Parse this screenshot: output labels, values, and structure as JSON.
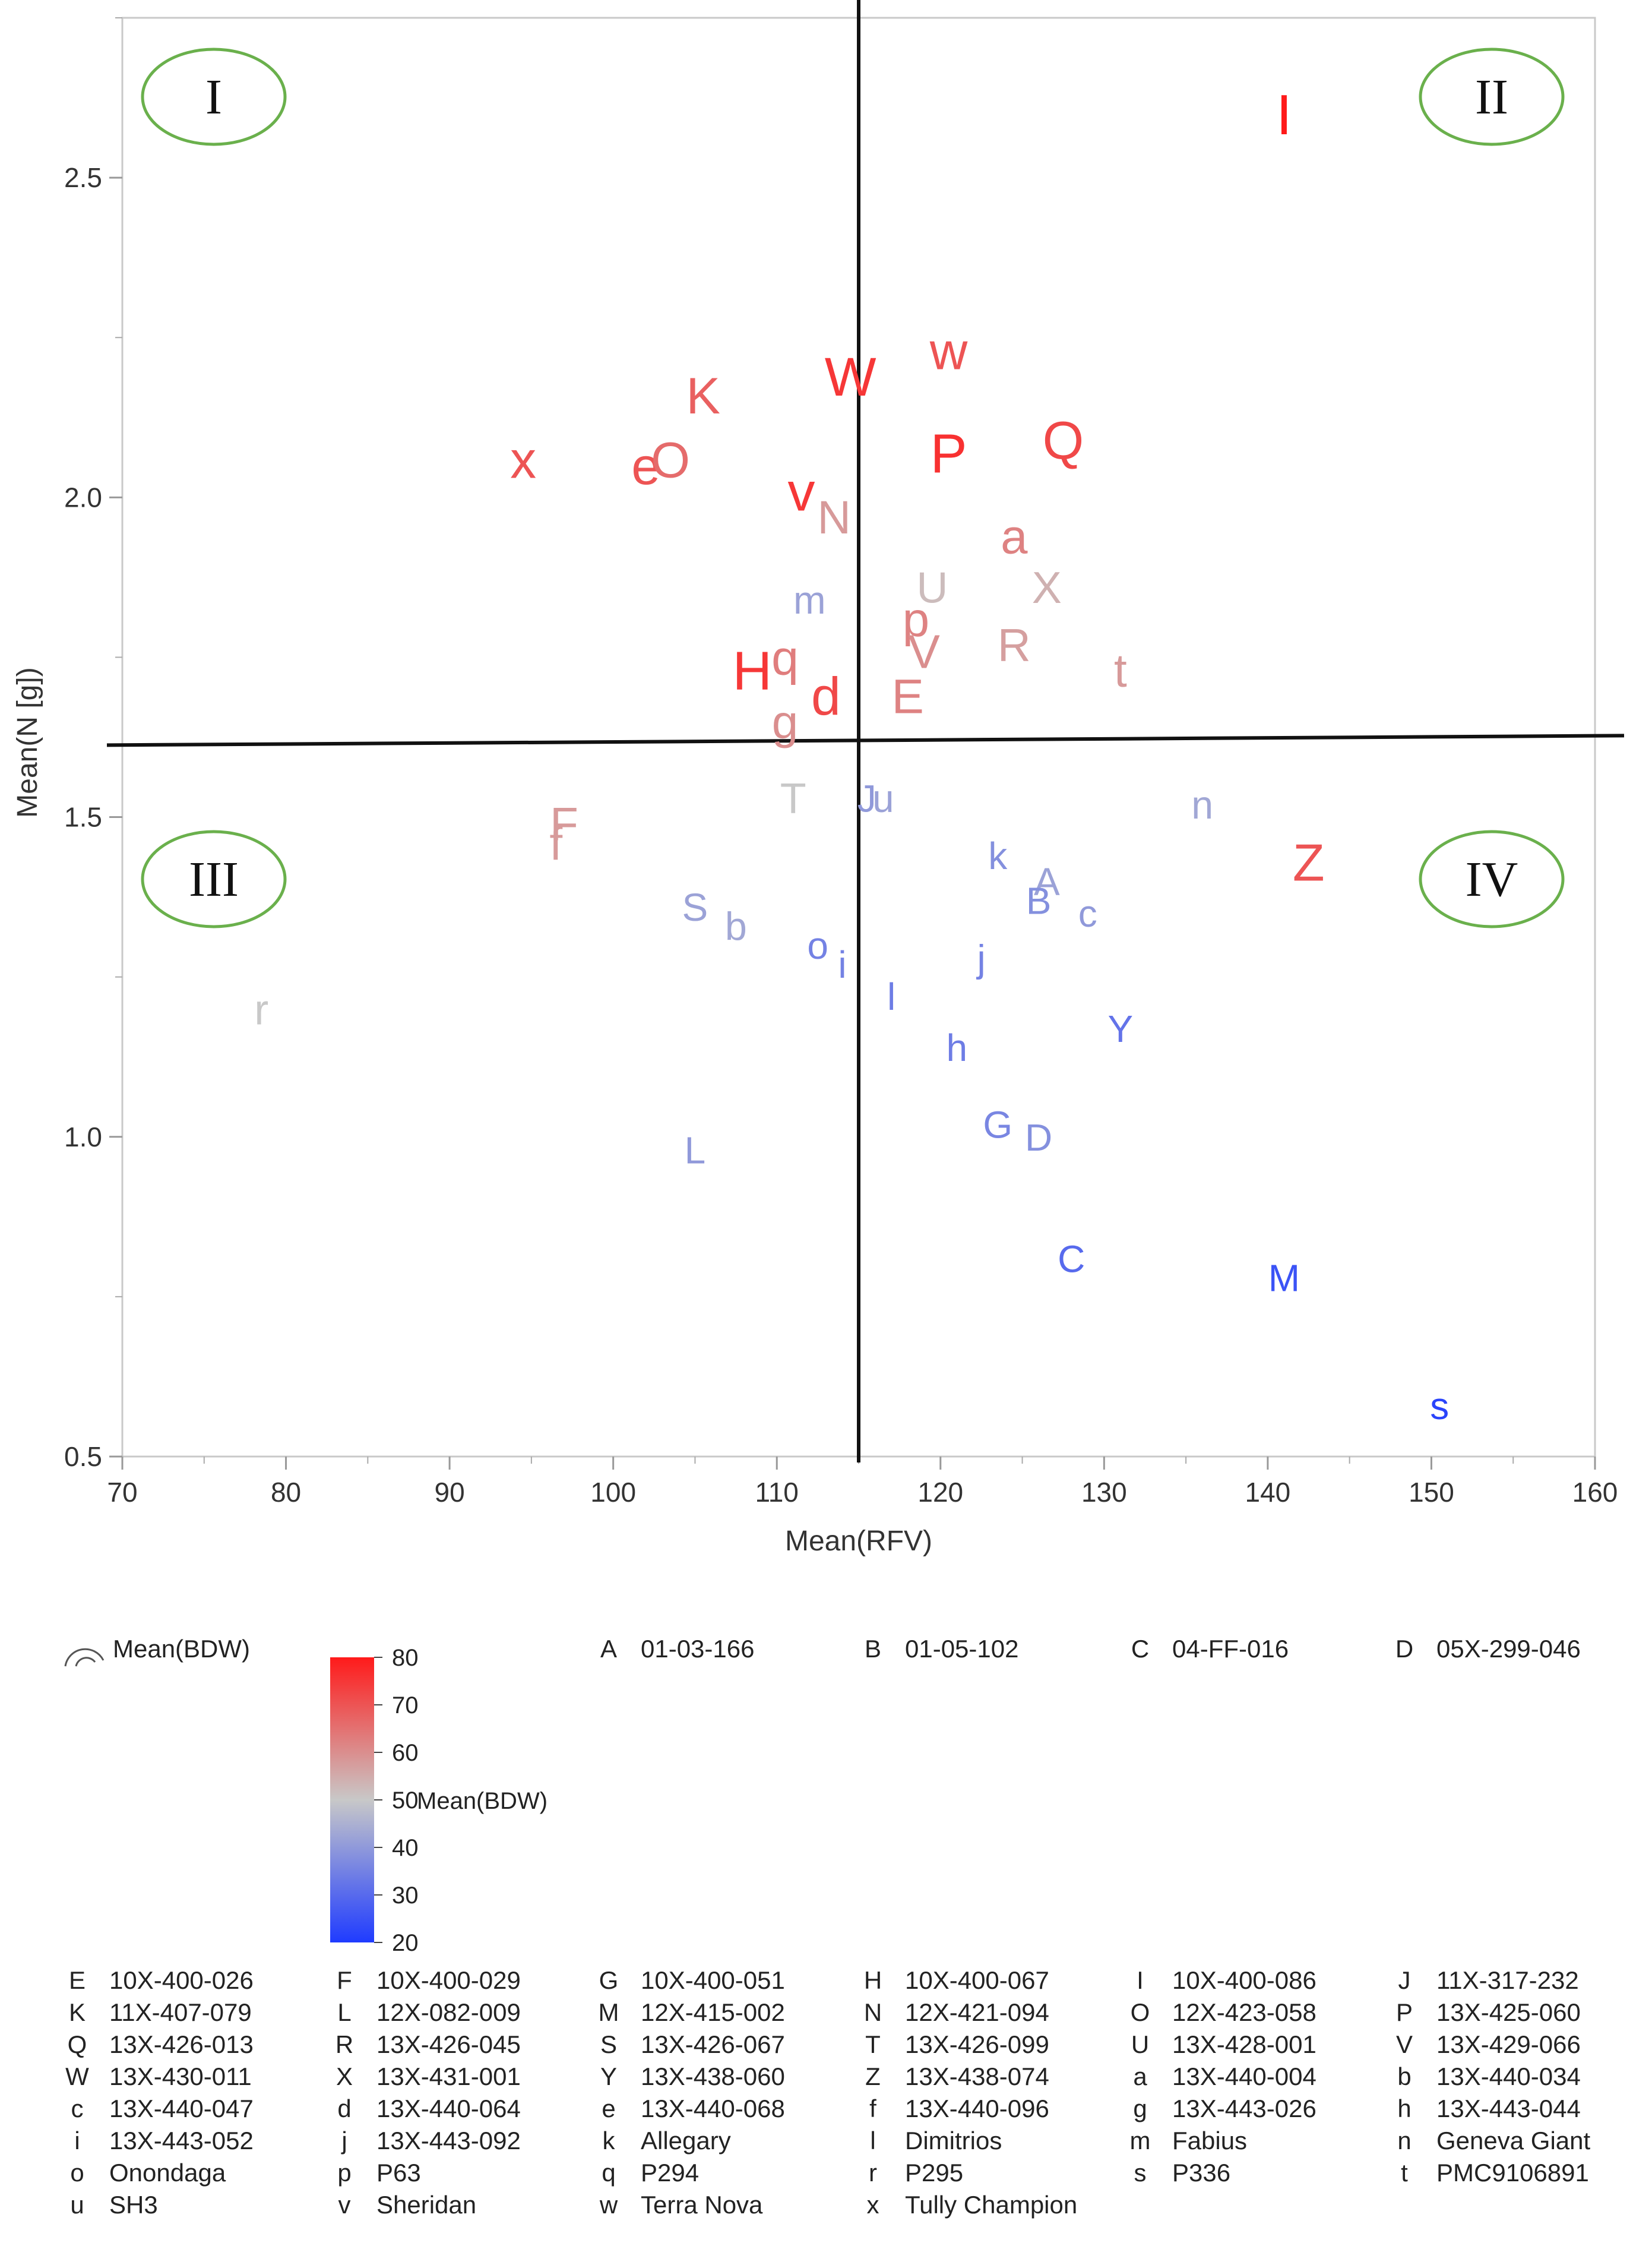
{
  "chart_data": {
    "type": "scatter",
    "title": "",
    "xlabel": "Mean(RFV)",
    "ylabel": "Mean(N [g])",
    "xlim": [
      70,
      160
    ],
    "ylim": [
      0.5,
      2.75
    ],
    "x_ticks": [
      "70",
      "80",
      "90",
      "100",
      "110",
      "120",
      "130",
      "140",
      "150",
      "160"
    ],
    "y_ticks": [
      "0.5",
      "1.0",
      "1.5",
      "2.0",
      "2.5"
    ],
    "color_variable": "Mean(BDW)",
    "colorbar_range": [
      20,
      80
    ],
    "colorbar_ticks": [
      "20",
      "30",
      "40",
      "50",
      "60",
      "70",
      "80"
    ],
    "colorbar_label": "Mean(BDW)",
    "quadrant_divider": {
      "x": 115,
      "y": 1.62
    },
    "quadrants": [
      "I",
      "II",
      "III",
      "IV"
    ],
    "legend_title": "Mean(BDW)",
    "points": [
      {
        "label": "I",
        "x": 141.0,
        "y": 2.6,
        "bdw": 80
      },
      {
        "label": "w",
        "x": 120.5,
        "y": 2.23,
        "bdw": 70
      },
      {
        "label": "W",
        "x": 114.5,
        "y": 2.19,
        "bdw": 75
      },
      {
        "label": "K",
        "x": 105.5,
        "y": 2.16,
        "bdw": 68
      },
      {
        "label": "Q",
        "x": 127.5,
        "y": 2.09,
        "bdw": 72
      },
      {
        "label": "P",
        "x": 120.5,
        "y": 2.07,
        "bdw": 76
      },
      {
        "label": "x",
        "x": 94.5,
        "y": 2.06,
        "bdw": 70
      },
      {
        "label": "e",
        "x": 102.0,
        "y": 2.05,
        "bdw": 70
      },
      {
        "label": "O",
        "x": 103.5,
        "y": 2.06,
        "bdw": 66
      },
      {
        "label": "v",
        "x": 111.5,
        "y": 2.01,
        "bdw": 75
      },
      {
        "label": "N",
        "x": 113.5,
        "y": 1.97,
        "bdw": 58
      },
      {
        "label": "a",
        "x": 124.5,
        "y": 1.94,
        "bdw": 62
      },
      {
        "label": "U",
        "x": 119.5,
        "y": 1.86,
        "bdw": 52
      },
      {
        "label": "X",
        "x": 126.5,
        "y": 1.86,
        "bdw": 54
      },
      {
        "label": "m",
        "x": 112.0,
        "y": 1.84,
        "bdw": 42
      },
      {
        "label": "p",
        "x": 118.5,
        "y": 1.81,
        "bdw": 62
      },
      {
        "label": "V",
        "x": 119.0,
        "y": 1.76,
        "bdw": 60
      },
      {
        "label": "R",
        "x": 124.5,
        "y": 1.77,
        "bdw": 57
      },
      {
        "label": "t",
        "x": 131.0,
        "y": 1.73,
        "bdw": 58
      },
      {
        "label": "H",
        "x": 108.5,
        "y": 1.73,
        "bdw": 75
      },
      {
        "label": "q",
        "x": 110.5,
        "y": 1.75,
        "bdw": 63
      },
      {
        "label": "d",
        "x": 113.0,
        "y": 1.69,
        "bdw": 72
      },
      {
        "label": "E",
        "x": 118.0,
        "y": 1.69,
        "bdw": 62
      },
      {
        "label": "g",
        "x": 110.5,
        "y": 1.65,
        "bdw": 60
      },
      {
        "label": "T",
        "x": 111.0,
        "y": 1.53,
        "bdw": 50
      },
      {
        "label": "J",
        "x": 115.5,
        "y": 1.53,
        "bdw": 40
      },
      {
        "label": "u",
        "x": 116.5,
        "y": 1.53,
        "bdw": 42
      },
      {
        "label": "n",
        "x": 136.0,
        "y": 1.52,
        "bdw": 43
      },
      {
        "label": "F",
        "x": 97.0,
        "y": 1.49,
        "bdw": 58
      },
      {
        "label": "f",
        "x": 96.5,
        "y": 1.46,
        "bdw": 58
      },
      {
        "label": "Z",
        "x": 142.5,
        "y": 1.43,
        "bdw": 70
      },
      {
        "label": "k",
        "x": 123.5,
        "y": 1.44,
        "bdw": 38
      },
      {
        "label": "A",
        "x": 126.5,
        "y": 1.4,
        "bdw": 42
      },
      {
        "label": "B",
        "x": 126.0,
        "y": 1.37,
        "bdw": 38
      },
      {
        "label": "c",
        "x": 129.0,
        "y": 1.35,
        "bdw": 40
      },
      {
        "label": "S",
        "x": 105.0,
        "y": 1.36,
        "bdw": 42
      },
      {
        "label": "b",
        "x": 107.5,
        "y": 1.33,
        "bdw": 43
      },
      {
        "label": "o",
        "x": 112.5,
        "y": 1.3,
        "bdw": 35
      },
      {
        "label": "i",
        "x": 114.0,
        "y": 1.27,
        "bdw": 35
      },
      {
        "label": "j",
        "x": 122.5,
        "y": 1.28,
        "bdw": 35
      },
      {
        "label": "l",
        "x": 117.0,
        "y": 1.22,
        "bdw": 34
      },
      {
        "label": "r",
        "x": 78.5,
        "y": 1.2,
        "bdw": 50
      },
      {
        "label": "Y",
        "x": 131.0,
        "y": 1.17,
        "bdw": 32
      },
      {
        "label": "h",
        "x": 121.0,
        "y": 1.14,
        "bdw": 34
      },
      {
        "label": "G",
        "x": 123.5,
        "y": 1.02,
        "bdw": 36
      },
      {
        "label": "D",
        "x": 126.0,
        "y": 1.0,
        "bdw": 38
      },
      {
        "label": "L",
        "x": 105.0,
        "y": 0.98,
        "bdw": 40
      },
      {
        "label": "C",
        "x": 128.0,
        "y": 0.81,
        "bdw": 30
      },
      {
        "label": "M",
        "x": 141.0,
        "y": 0.78,
        "bdw": 25
      },
      {
        "label": "s",
        "x": 150.5,
        "y": 0.58,
        "bdw": 22
      }
    ],
    "legend_entries_top": [
      {
        "letter": "A",
        "name": "01-03-166"
      },
      {
        "letter": "B",
        "name": "01-05-102"
      },
      {
        "letter": "C",
        "name": "04-FF-016"
      },
      {
        "letter": "D",
        "name": "05X-299-046"
      }
    ],
    "legend_entries": [
      {
        "letter": "E",
        "name": "10X-400-026"
      },
      {
        "letter": "F",
        "name": "10X-400-029"
      },
      {
        "letter": "G",
        "name": "10X-400-051"
      },
      {
        "letter": "H",
        "name": "10X-400-067"
      },
      {
        "letter": "I",
        "name": "10X-400-086"
      },
      {
        "letter": "J",
        "name": "11X-317-232"
      },
      {
        "letter": "K",
        "name": "11X-407-079"
      },
      {
        "letter": "L",
        "name": "12X-082-009"
      },
      {
        "letter": "M",
        "name": "12X-415-002"
      },
      {
        "letter": "N",
        "name": "12X-421-094"
      },
      {
        "letter": "O",
        "name": "12X-423-058"
      },
      {
        "letter": "P",
        "name": "13X-425-060"
      },
      {
        "letter": "Q",
        "name": "13X-426-013"
      },
      {
        "letter": "R",
        "name": "13X-426-045"
      },
      {
        "letter": "S",
        "name": "13X-426-067"
      },
      {
        "letter": "T",
        "name": "13X-426-099"
      },
      {
        "letter": "U",
        "name": "13X-428-001"
      },
      {
        "letter": "V",
        "name": "13X-429-066"
      },
      {
        "letter": "W",
        "name": "13X-430-011"
      },
      {
        "letter": "X",
        "name": "13X-431-001"
      },
      {
        "letter": "Y",
        "name": "13X-438-060"
      },
      {
        "letter": "Z",
        "name": "13X-438-074"
      },
      {
        "letter": "a",
        "name": "13X-440-004"
      },
      {
        "letter": "b",
        "name": "13X-440-034"
      },
      {
        "letter": "c",
        "name": "13X-440-047"
      },
      {
        "letter": "d",
        "name": "13X-440-064"
      },
      {
        "letter": "e",
        "name": "13X-440-068"
      },
      {
        "letter": "f",
        "name": "13X-440-096"
      },
      {
        "letter": "g",
        "name": "13X-443-026"
      },
      {
        "letter": "h",
        "name": "13X-443-044"
      },
      {
        "letter": "i",
        "name": "13X-443-052"
      },
      {
        "letter": "j",
        "name": "13X-443-092"
      },
      {
        "letter": "k",
        "name": "Allegary"
      },
      {
        "letter": "l",
        "name": "Dimitrios"
      },
      {
        "letter": "m",
        "name": "Fabius"
      },
      {
        "letter": "n",
        "name": "Geneva Giant"
      },
      {
        "letter": "o",
        "name": "Onondaga"
      },
      {
        "letter": "p",
        "name": "P63"
      },
      {
        "letter": "q",
        "name": "P294"
      },
      {
        "letter": "r",
        "name": "P295"
      },
      {
        "letter": "s",
        "name": "P336"
      },
      {
        "letter": "t",
        "name": "PMC9106891"
      },
      {
        "letter": "u",
        "name": "SH3"
      },
      {
        "letter": "v",
        "name": "Sheridan"
      },
      {
        "letter": "w",
        "name": "Terra Nova"
      },
      {
        "letter": "x",
        "name": "Tully Champion"
      }
    ]
  }
}
